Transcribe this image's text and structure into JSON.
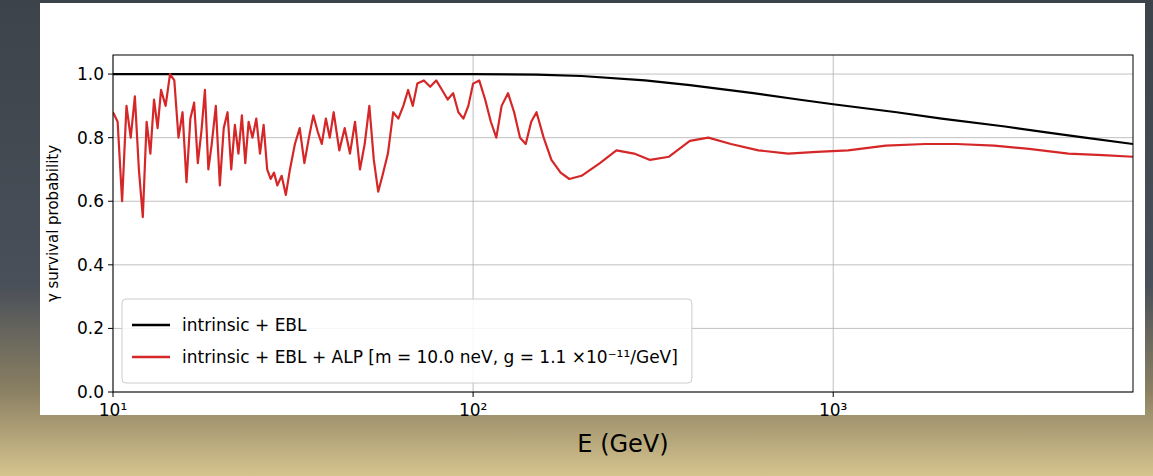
{
  "chart_data": {
    "type": "line",
    "x_label": "E (GeV)",
    "y_label": "γ survival probability",
    "log": "x",
    "grid": true,
    "legend": "lower left",
    "xlim": [
      10,
      6800
    ],
    "ylim": [
      0,
      1.06
    ],
    "xticks": [
      {
        "value": 10,
        "label": "10¹"
      },
      {
        "value": 100,
        "label": "10²"
      },
      {
        "value": 1000,
        "label": "10³"
      }
    ],
    "yticks": [
      {
        "value": 0,
        "label": "0.0"
      },
      {
        "value": 0.2,
        "label": "0.2"
      },
      {
        "value": 0.4,
        "label": "0.4"
      },
      {
        "value": 0.6,
        "label": "0.6"
      },
      {
        "value": 0.8,
        "label": "0.8"
      },
      {
        "value": 1.0,
        "label": "1.0"
      }
    ],
    "series": [
      {
        "name": "intrinsic + EBL",
        "color": "#000000",
        "x": [
          10,
          50,
          100,
          150,
          200,
          300,
          400,
          600,
          800,
          1000,
          1500,
          2000,
          3000,
          4000,
          5000,
          6800
        ],
        "values": [
          1.0,
          1.0,
          1.0,
          0.998,
          0.994,
          0.98,
          0.965,
          0.94,
          0.92,
          0.905,
          0.88,
          0.86,
          0.835,
          0.815,
          0.8,
          0.78
        ]
      },
      {
        "name": "intrinsic + EBL + ALP [m = 10.0 neV,  g = 1.1 ×10⁻¹¹/GeV]",
        "color": "#d62728",
        "x": [
          10,
          10.3,
          10.6,
          10.9,
          11.2,
          11.5,
          11.8,
          12.1,
          12.4,
          12.7,
          13.0,
          13.3,
          13.6,
          14.0,
          14.4,
          14.8,
          15.2,
          15.6,
          16.0,
          16.4,
          16.8,
          17.2,
          17.6,
          18.0,
          18.4,
          18.8,
          19.3,
          19.8,
          20.3,
          20.8,
          21.3,
          21.8,
          22.3,
          22.8,
          23.3,
          23.8,
          24.4,
          25.0,
          25.6,
          26.2,
          26.8,
          27.4,
          28.0,
          28.6,
          29.4,
          30.2,
          31.0,
          32.0,
          33.0,
          34.0,
          35.0,
          36.0,
          37.0,
          38.0,
          39.0,
          40.0,
          41.0,
          42.5,
          44.0,
          45.5,
          47.0,
          48.5,
          50.0,
          51.5,
          53.0,
          54.5,
          56.0,
          58.0,
          60.0,
          62.0,
          64.0,
          66.0,
          68.0,
          70.0,
          73.0,
          76.0,
          79.0,
          82.0,
          85.0,
          88.0,
          91.0,
          94.0,
          97.0,
          100,
          104,
          108,
          112,
          116,
          120,
          125,
          130,
          135,
          140,
          145,
          150,
          157,
          165,
          175,
          185,
          200,
          225,
          250,
          280,
          310,
          350,
          400,
          450,
          520,
          620,
          750,
          900,
          1100,
          1400,
          1800,
          2200,
          2800,
          3500,
          4500,
          5600,
          6800
        ],
        "values": [
          0.88,
          0.85,
          0.6,
          0.9,
          0.8,
          0.93,
          0.7,
          0.55,
          0.85,
          0.75,
          0.92,
          0.83,
          0.95,
          0.9,
          1.0,
          0.98,
          0.8,
          0.88,
          0.66,
          0.86,
          0.91,
          0.72,
          0.82,
          0.95,
          0.7,
          0.78,
          0.9,
          0.65,
          0.83,
          0.88,
          0.7,
          0.84,
          0.75,
          0.87,
          0.72,
          0.85,
          0.8,
          0.86,
          0.75,
          0.84,
          0.7,
          0.67,
          0.69,
          0.65,
          0.68,
          0.62,
          0.7,
          0.78,
          0.83,
          0.72,
          0.8,
          0.87,
          0.82,
          0.78,
          0.86,
          0.8,
          0.88,
          0.76,
          0.83,
          0.75,
          0.85,
          0.7,
          0.78,
          0.9,
          0.73,
          0.63,
          0.68,
          0.75,
          0.88,
          0.86,
          0.9,
          0.95,
          0.9,
          0.97,
          0.98,
          0.96,
          0.98,
          0.95,
          0.92,
          0.94,
          0.88,
          0.86,
          0.9,
          0.97,
          0.98,
          0.92,
          0.85,
          0.8,
          0.9,
          0.94,
          0.88,
          0.8,
          0.78,
          0.85,
          0.88,
          0.8,
          0.73,
          0.69,
          0.67,
          0.68,
          0.72,
          0.76,
          0.75,
          0.73,
          0.74,
          0.79,
          0.8,
          0.78,
          0.76,
          0.75,
          0.755,
          0.76,
          0.775,
          0.78,
          0.78,
          0.775,
          0.765,
          0.75,
          0.745,
          0.74
        ]
      }
    ]
  }
}
